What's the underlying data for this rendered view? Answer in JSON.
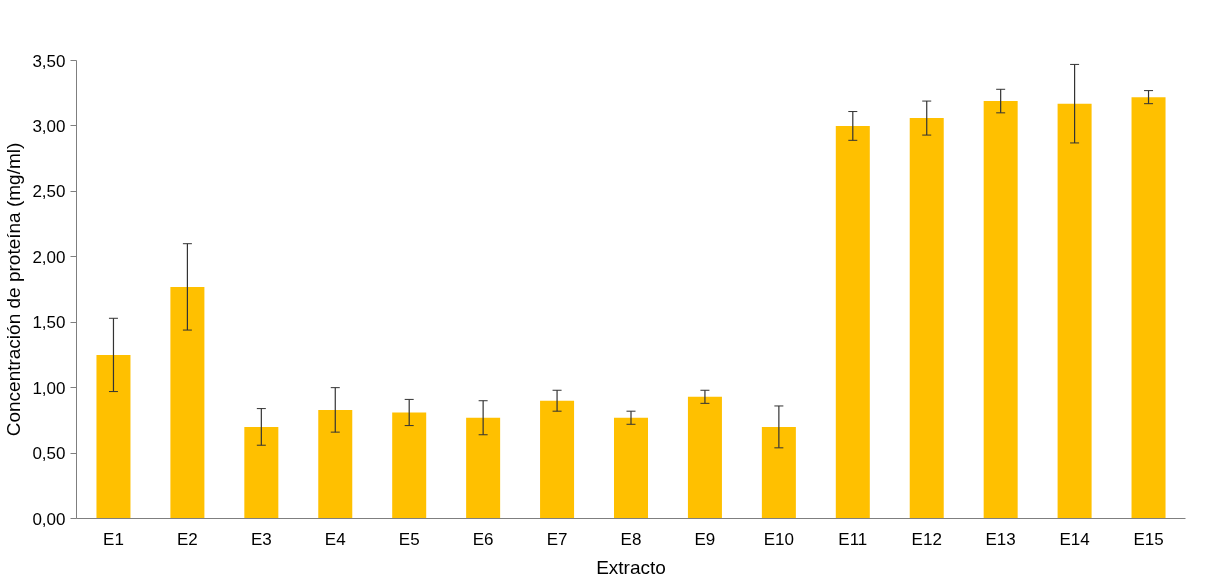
{
  "chart_data": {
    "type": "bar",
    "xlabel": "Extracto",
    "ylabel": "Concentración de proteína (mg/ml)",
    "categories": [
      "E1",
      "E2",
      "E3",
      "E4",
      "E5",
      "E6",
      "E7",
      "E8",
      "E9",
      "E10",
      "E11",
      "E12",
      "E13",
      "E14",
      "E15"
    ],
    "values": [
      1.25,
      1.77,
      0.7,
      0.83,
      0.81,
      0.77,
      0.9,
      0.77,
      0.93,
      0.7,
      3.0,
      3.06,
      3.19,
      3.17,
      3.22
    ],
    "errors": [
      0.28,
      0.33,
      0.14,
      0.17,
      0.1,
      0.13,
      0.08,
      0.05,
      0.05,
      0.16,
      0.11,
      0.13,
      0.09,
      0.3,
      0.05
    ],
    "color": "#ffc000",
    "ylim": [
      0,
      3.5
    ],
    "yticks": [
      {
        "value": 0,
        "label": "0,00"
      },
      {
        "value": 0.5,
        "label": "0,50"
      },
      {
        "value": 1,
        "label": "1,00"
      },
      {
        "value": 1.5,
        "label": "1,50"
      },
      {
        "value": 2,
        "label": "2,00"
      },
      {
        "value": 2.5,
        "label": "2,50"
      },
      {
        "value": 3,
        "label": "3,00"
      },
      {
        "value": 3.5,
        "label": "3,50"
      }
    ],
    "grid": false
  }
}
